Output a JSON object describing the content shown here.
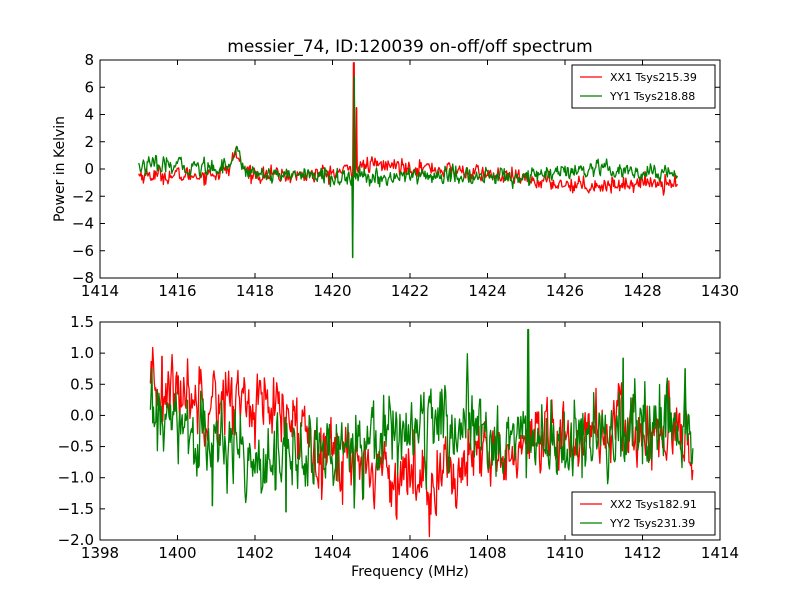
{
  "chart_data": [
    {
      "type": "line",
      "title": "messier_74, ID:120039 on-off/off spectrum",
      "xlabel": "",
      "ylabel": "Power in Kelvin",
      "xlim": [
        1414,
        1430
      ],
      "ylim": [
        -8,
        8
      ],
      "xticks": [
        1414,
        1416,
        1418,
        1420,
        1422,
        1424,
        1426,
        1428,
        1430
      ],
      "yticks": [
        -8,
        -6,
        -4,
        -2,
        0,
        2,
        4,
        6,
        8
      ],
      "grid": false,
      "legend_position": "top-right",
      "x_start": 1415.0,
      "x_end": 1428.9,
      "series": [
        {
          "name": "XX1 Tsys215.39",
          "color": "#ff0000",
          "noise": 0.28,
          "anchors": [
            [
              1415.0,
              -0.4
            ],
            [
              1416.0,
              -0.5
            ],
            [
              1416.8,
              -0.4
            ],
            [
              1417.3,
              -0.1
            ],
            [
              1417.5,
              1.2
            ],
            [
              1417.7,
              0.0
            ],
            [
              1418.0,
              -0.4
            ],
            [
              1419.0,
              -0.5
            ],
            [
              1420.0,
              -0.3
            ],
            [
              1420.4,
              -0.1
            ],
            [
              1421.0,
              0.3
            ],
            [
              1422.0,
              0.2
            ],
            [
              1423.0,
              -0.1
            ],
            [
              1424.0,
              -0.4
            ],
            [
              1425.0,
              -0.8
            ],
            [
              1426.0,
              -1.1
            ],
            [
              1427.0,
              -1.2
            ],
            [
              1428.0,
              -1.0
            ],
            [
              1428.9,
              -0.9
            ]
          ],
          "spikes": [
            [
              1420.55,
              7.8
            ],
            [
              1420.62,
              4.5
            ]
          ]
        },
        {
          "name": "YY1 Tsys218.88",
          "color": "#008000",
          "noise": 0.3,
          "anchors": [
            [
              1415.0,
              0.2
            ],
            [
              1416.0,
              0.2
            ],
            [
              1416.8,
              0.1
            ],
            [
              1417.3,
              0.3
            ],
            [
              1417.5,
              1.4
            ],
            [
              1417.7,
              0.1
            ],
            [
              1418.0,
              -0.3
            ],
            [
              1419.0,
              -0.4
            ],
            [
              1420.0,
              -0.6
            ],
            [
              1420.4,
              -0.6
            ],
            [
              1421.0,
              -0.7
            ],
            [
              1422.0,
              -0.5
            ],
            [
              1423.0,
              -0.5
            ],
            [
              1424.0,
              -0.6
            ],
            [
              1425.0,
              -0.5
            ],
            [
              1426.0,
              -0.3
            ],
            [
              1427.0,
              -0.1
            ],
            [
              1428.0,
              -0.4
            ],
            [
              1428.9,
              -0.2
            ]
          ],
          "spikes": [
            [
              1420.52,
              -6.5
            ],
            [
              1420.56,
              6.8
            ]
          ]
        }
      ]
    },
    {
      "type": "line",
      "title": "",
      "xlabel": "Frequency (MHz)",
      "ylabel": "",
      "xlim": [
        1398,
        1414
      ],
      "ylim": [
        -2.0,
        1.5
      ],
      "xticks": [
        1398,
        1400,
        1402,
        1404,
        1406,
        1408,
        1410,
        1412,
        1414
      ],
      "xtick_labels": [
        "1398",
        "1400",
        "1402",
        "1404",
        "1406",
        "1408",
        "1410",
        "1412",
        "1414"
      ],
      "yticks": [
        -2.0,
        -1.5,
        -1.0,
        -0.5,
        0.0,
        0.5,
        1.0,
        1.5
      ],
      "ytick_labels": [
        "−2.0",
        "−1.5",
        "−1.0",
        "−0.5",
        "0.0",
        "0.5",
        "1.0",
        "1.5"
      ],
      "grid": false,
      "legend_position": "bottom-right",
      "x_start": 1399.3,
      "x_end": 1413.3,
      "series": [
        {
          "name": "XX2 Tsys182.91",
          "color": "#ff0000",
          "noise": 0.28,
          "anchors": [
            [
              1399.3,
              0.3
            ],
            [
              1400.0,
              0.4
            ],
            [
              1401.0,
              0.3
            ],
            [
              1402.0,
              0.2
            ],
            [
              1402.8,
              -0.1
            ],
            [
              1403.5,
              -0.3
            ],
            [
              1404.0,
              -0.6
            ],
            [
              1405.0,
              -0.8
            ],
            [
              1406.0,
              -1.0
            ],
            [
              1407.0,
              -0.9
            ],
            [
              1408.0,
              -0.7
            ],
            [
              1409.0,
              -0.6
            ],
            [
              1410.0,
              -0.4
            ],
            [
              1411.0,
              -0.2
            ],
            [
              1412.0,
              -0.3
            ],
            [
              1413.3,
              -0.5
            ]
          ],
          "spikes": [
            [
              1399.6,
              0.95
            ]
          ]
        },
        {
          "name": "YY2 Tsys231.39",
          "color": "#008000",
          "noise": 0.3,
          "anchors": [
            [
              1399.3,
              0.0
            ],
            [
              1400.0,
              -0.2
            ],
            [
              1401.0,
              -0.5
            ],
            [
              1402.0,
              -0.6
            ],
            [
              1403.0,
              -0.7
            ],
            [
              1404.0,
              -0.6
            ],
            [
              1404.5,
              -0.4
            ],
            [
              1405.0,
              -0.3
            ],
            [
              1406.0,
              -0.2
            ],
            [
              1407.0,
              -0.2
            ],
            [
              1408.0,
              -0.3
            ],
            [
              1409.0,
              -0.4
            ],
            [
              1410.0,
              -0.5
            ],
            [
              1411.0,
              -0.4
            ],
            [
              1412.0,
              -0.3
            ],
            [
              1413.3,
              -0.3
            ]
          ],
          "spikes": [
            [
              1400.9,
              -1.45
            ],
            [
              1402.8,
              -1.55
            ],
            [
              1409.05,
              1.38
            ],
            [
              1411.5,
              0.92
            ],
            [
              1413.1,
              0.75
            ]
          ]
        }
      ]
    }
  ]
}
